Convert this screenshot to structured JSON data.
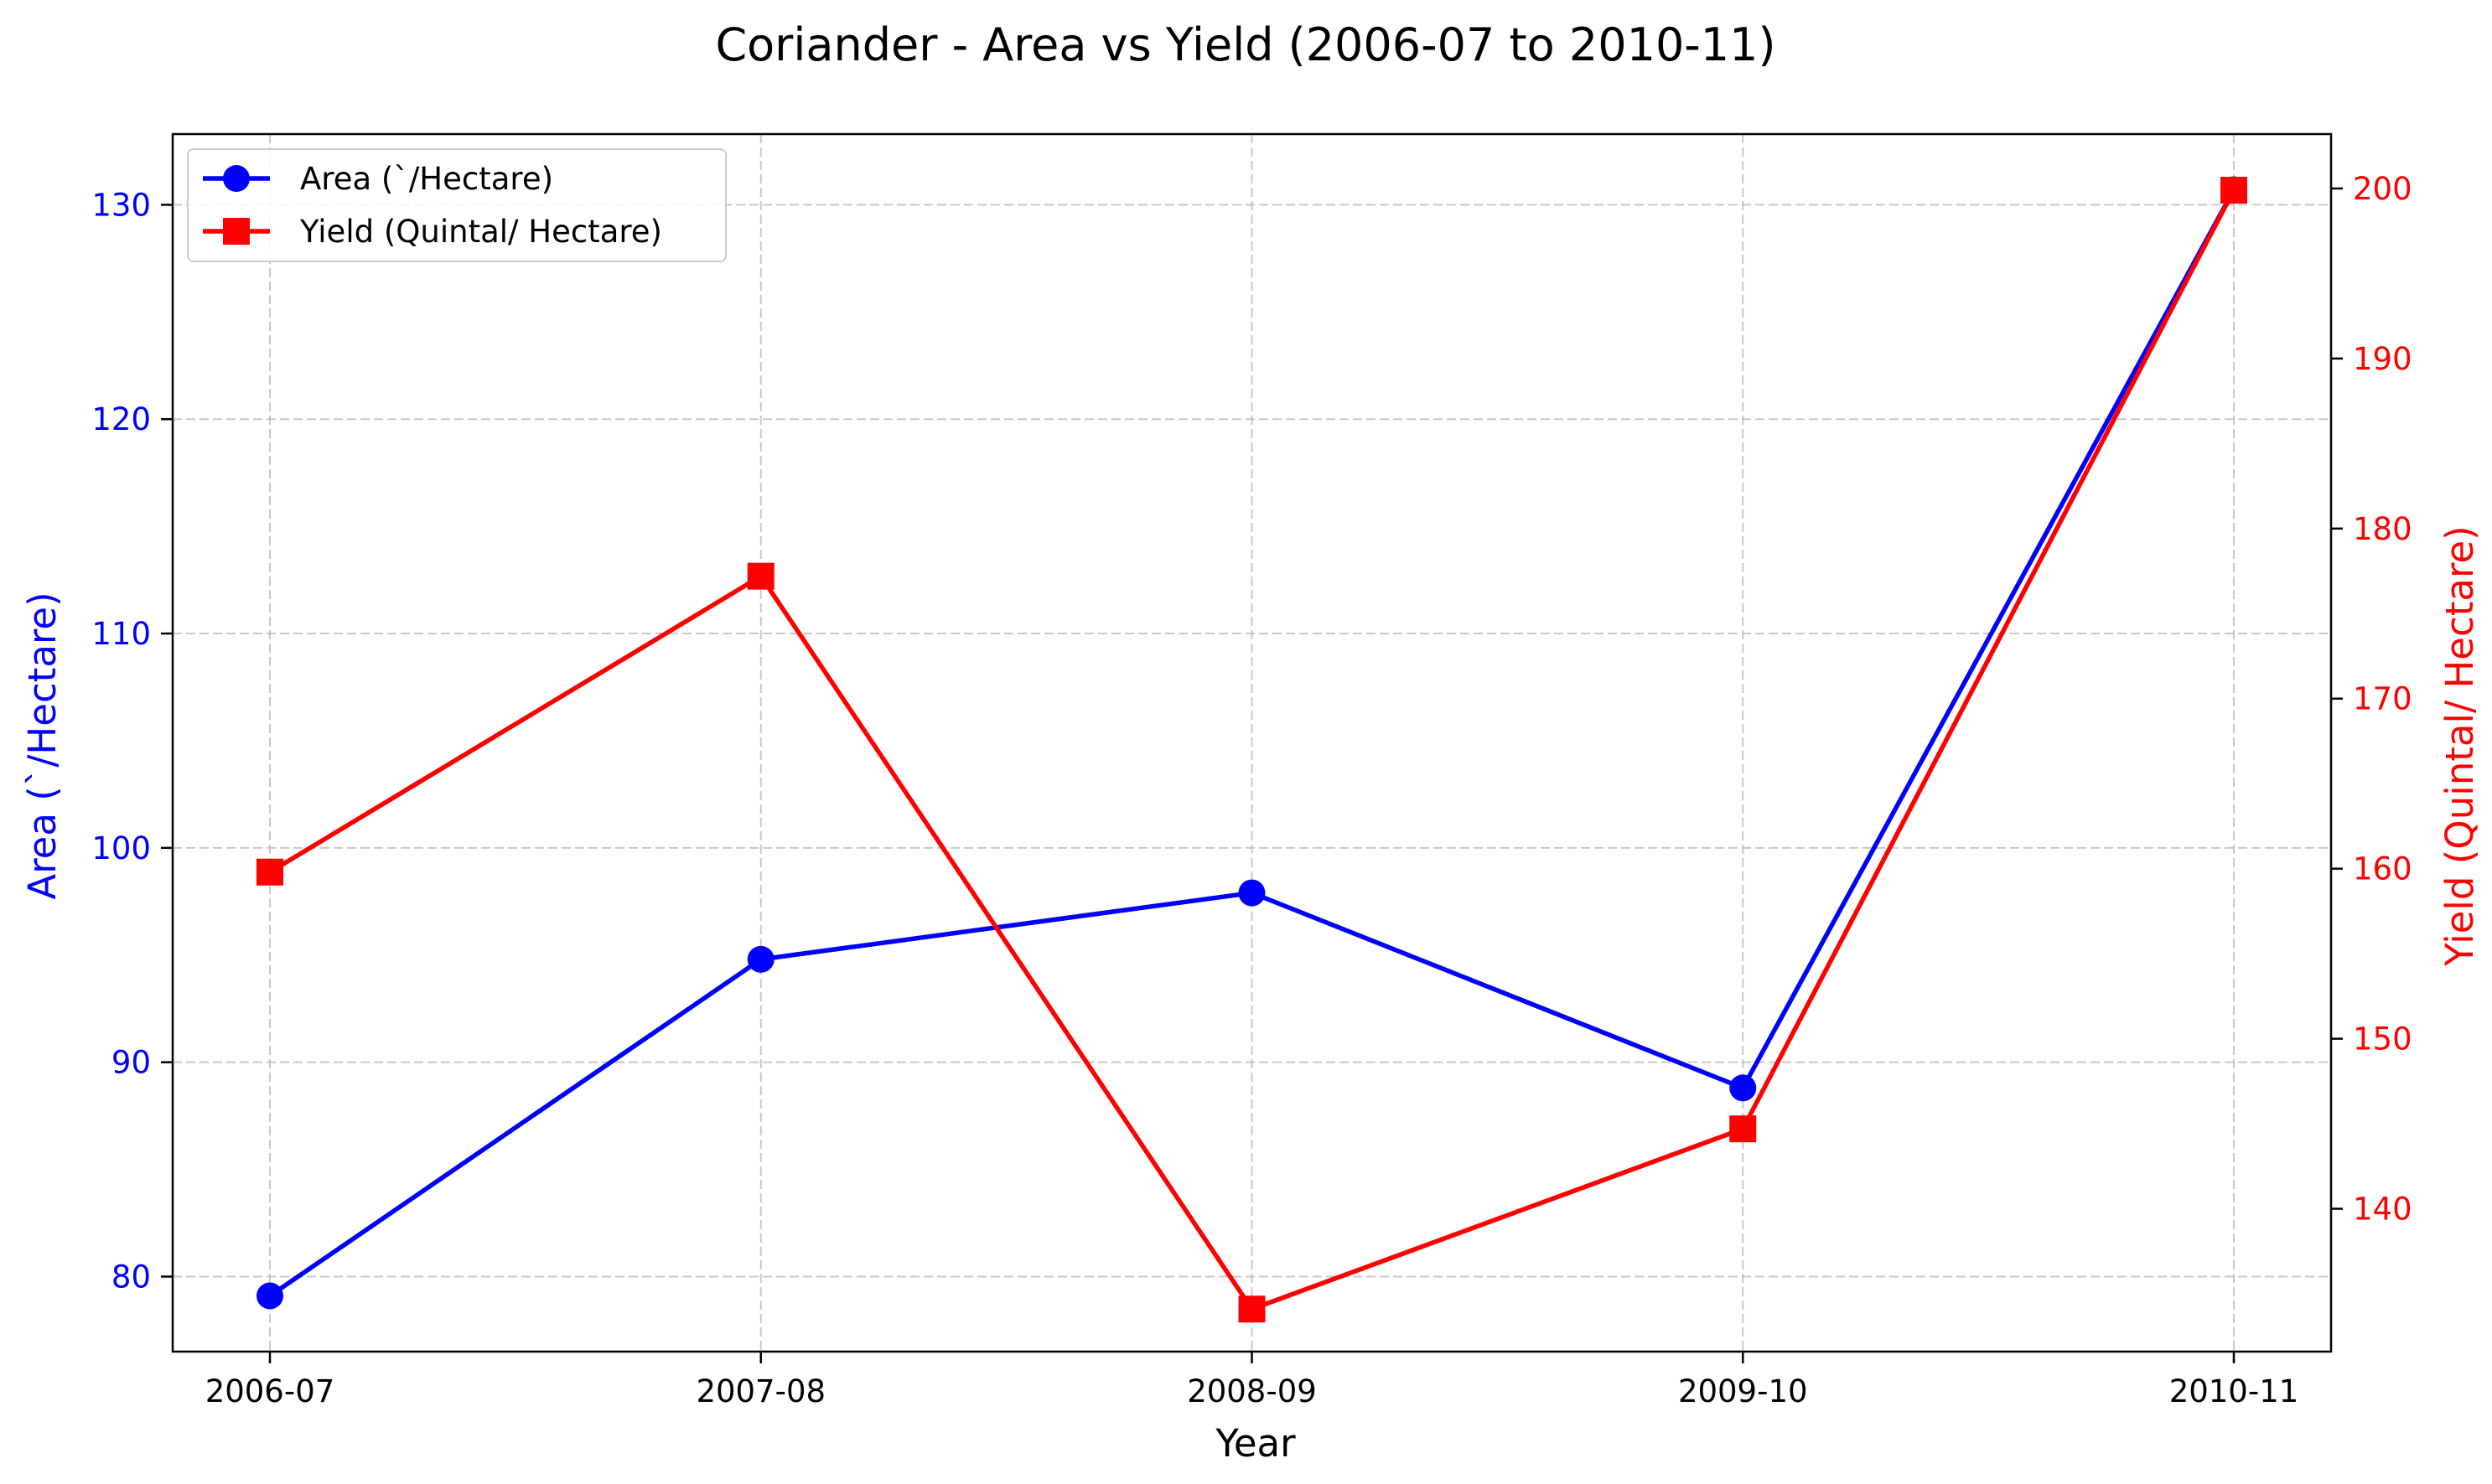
{
  "chart_data": {
    "type": "line",
    "title": "Coriander - Area vs Yield (2006-07 to 2010-11)",
    "xlabel": "Year",
    "ylabel_left": "Area (`/Hectare)",
    "ylabel_right": "Yield (Quintal/ Hectare)",
    "categories": [
      "2006-07",
      "2007-08",
      "2008-09",
      "2009-10",
      "2010-11"
    ],
    "ylim_left": [
      76.5,
      133.3
    ],
    "ylim_right": [
      131.6,
      203.2
    ],
    "yticks_left": [
      80,
      90,
      100,
      110,
      120,
      130
    ],
    "yticks_right": [
      140,
      150,
      160,
      170,
      180,
      190,
      200
    ],
    "grid": true,
    "legend_position": "top-left",
    "series": [
      {
        "name": "Area (`/Hectare)",
        "axis": "left",
        "color": "#0000ff",
        "marker": "circle",
        "values": [
          79.1,
          94.8,
          97.9,
          88.8,
          130.7
        ]
      },
      {
        "name": "Yield (Quintal/ Hectare)",
        "axis": "right",
        "color": "#ff0000",
        "marker": "square",
        "values": [
          159.8,
          177.2,
          134.1,
          144.7,
          199.9
        ]
      }
    ]
  }
}
